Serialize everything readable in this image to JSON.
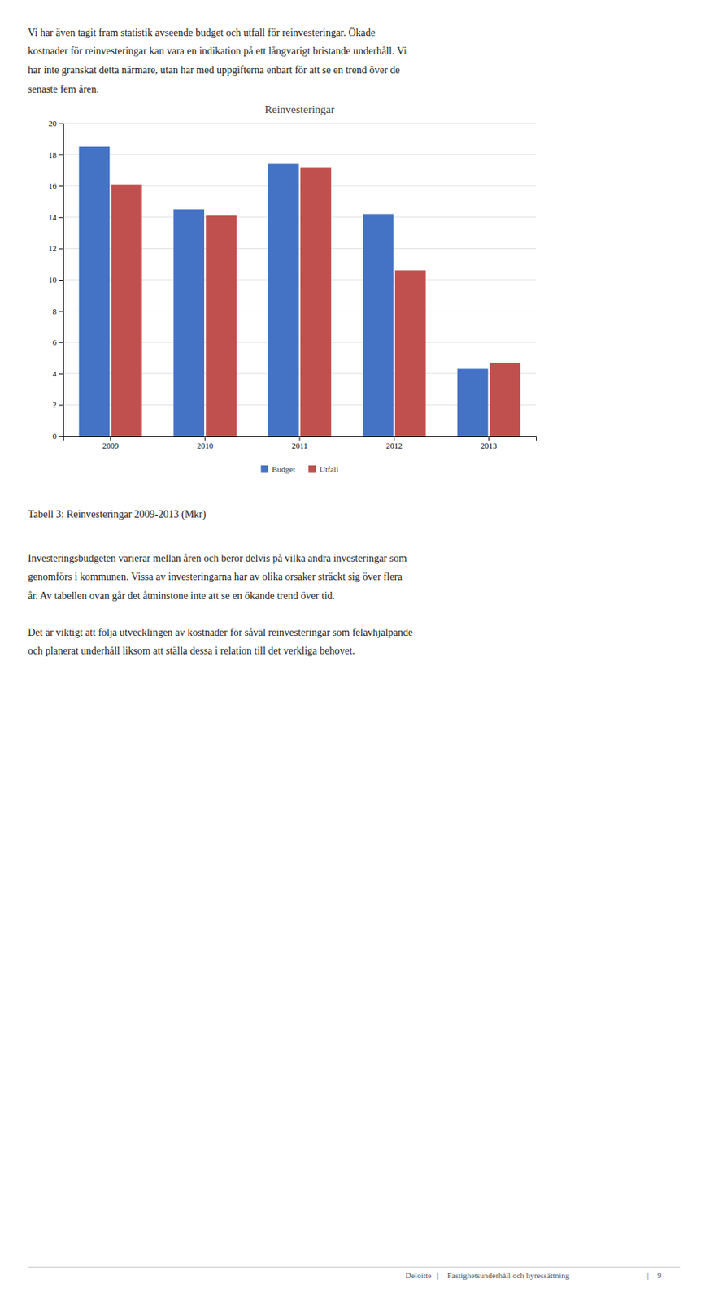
{
  "chart_data": {
    "type": "bar",
    "title": "Reinvesteringar",
    "categories": [
      "2009",
      "2010",
      "2011",
      "2012",
      "2013"
    ],
    "series": [
      {
        "name": "Budget",
        "color": "#4472C4",
        "values": [
          18.5,
          14.5,
          17.4,
          14.2,
          4.3
        ]
      },
      {
        "name": "Utfall",
        "color": "#C0504D",
        "values": [
          16.1,
          14.1,
          17.2,
          10.6,
          4.7
        ]
      }
    ],
    "ylim": [
      0,
      20
    ],
    "yticks": [
      0,
      2,
      4,
      6,
      8,
      10,
      12,
      14,
      16,
      18,
      20
    ],
    "grid": true,
    "legend": "bottom"
  },
  "intro": [
    "Vi har även tagit fram statistik avseende budget och utfall för reinvesteringar. Ökade",
    "kostnader för reinvesteringar kan vara en indikation på ett långvarigt bristande underhåll. Vi",
    "har inte granskat detta närmare, utan har med uppgifterna enbart för att se en trend över de",
    "senaste fem åren."
  ],
  "caption": "Tabell 3: Reinvesteringar 2009-2013 (Mkr)",
  "body1": [
    "Investeringsbudgeten varierar mellan åren och beror delvis på vilka andra investeringar som",
    "genomförs i kommunen. Vissa av investeringarna har av olika orsaker sträckt sig över flera",
    "år. Av tabellen ovan går det åtminstone inte att se en ökande trend över tid."
  ],
  "body2": [
    "Det är viktigt att följa utvecklingen av kostnader för såväl reinvesteringar som felavhjälpande",
    "och planerat underhåll liksom att ställa dessa i relation till det verkliga behovet."
  ],
  "footer": [
    "Deloitte",
    "|",
    "Fastighetsunderhåll och hyressättning",
    "|",
    "9"
  ]
}
